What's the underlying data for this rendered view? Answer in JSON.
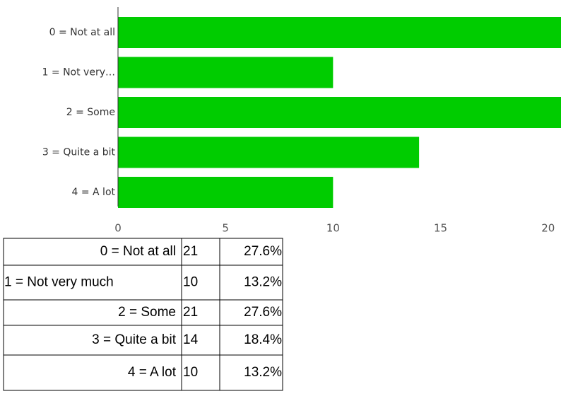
{
  "chart_data": {
    "type": "bar",
    "orientation": "horizontal",
    "categories": [
      "0 = Not at all",
      "1 = Not very…",
      "2 = Some",
      "3 = Quite a bit",
      "4 = A lot"
    ],
    "values": [
      21,
      10,
      21,
      14,
      10
    ],
    "color": "#00cc00",
    "xlim": [
      0,
      20.6
    ],
    "xticks": [
      0,
      5,
      10,
      15,
      20
    ]
  },
  "table": {
    "rows": [
      [
        "0 = Not at all",
        "21",
        "27.6%"
      ],
      [
        "1 = Not very much",
        "10",
        "13.2%"
      ],
      [
        "2 = Some",
        "21",
        "27.6%"
      ],
      [
        "3 = Quite a bit",
        "14",
        "18.4%"
      ],
      [
        "4 = A lot",
        "10",
        "13.2%"
      ]
    ]
  }
}
